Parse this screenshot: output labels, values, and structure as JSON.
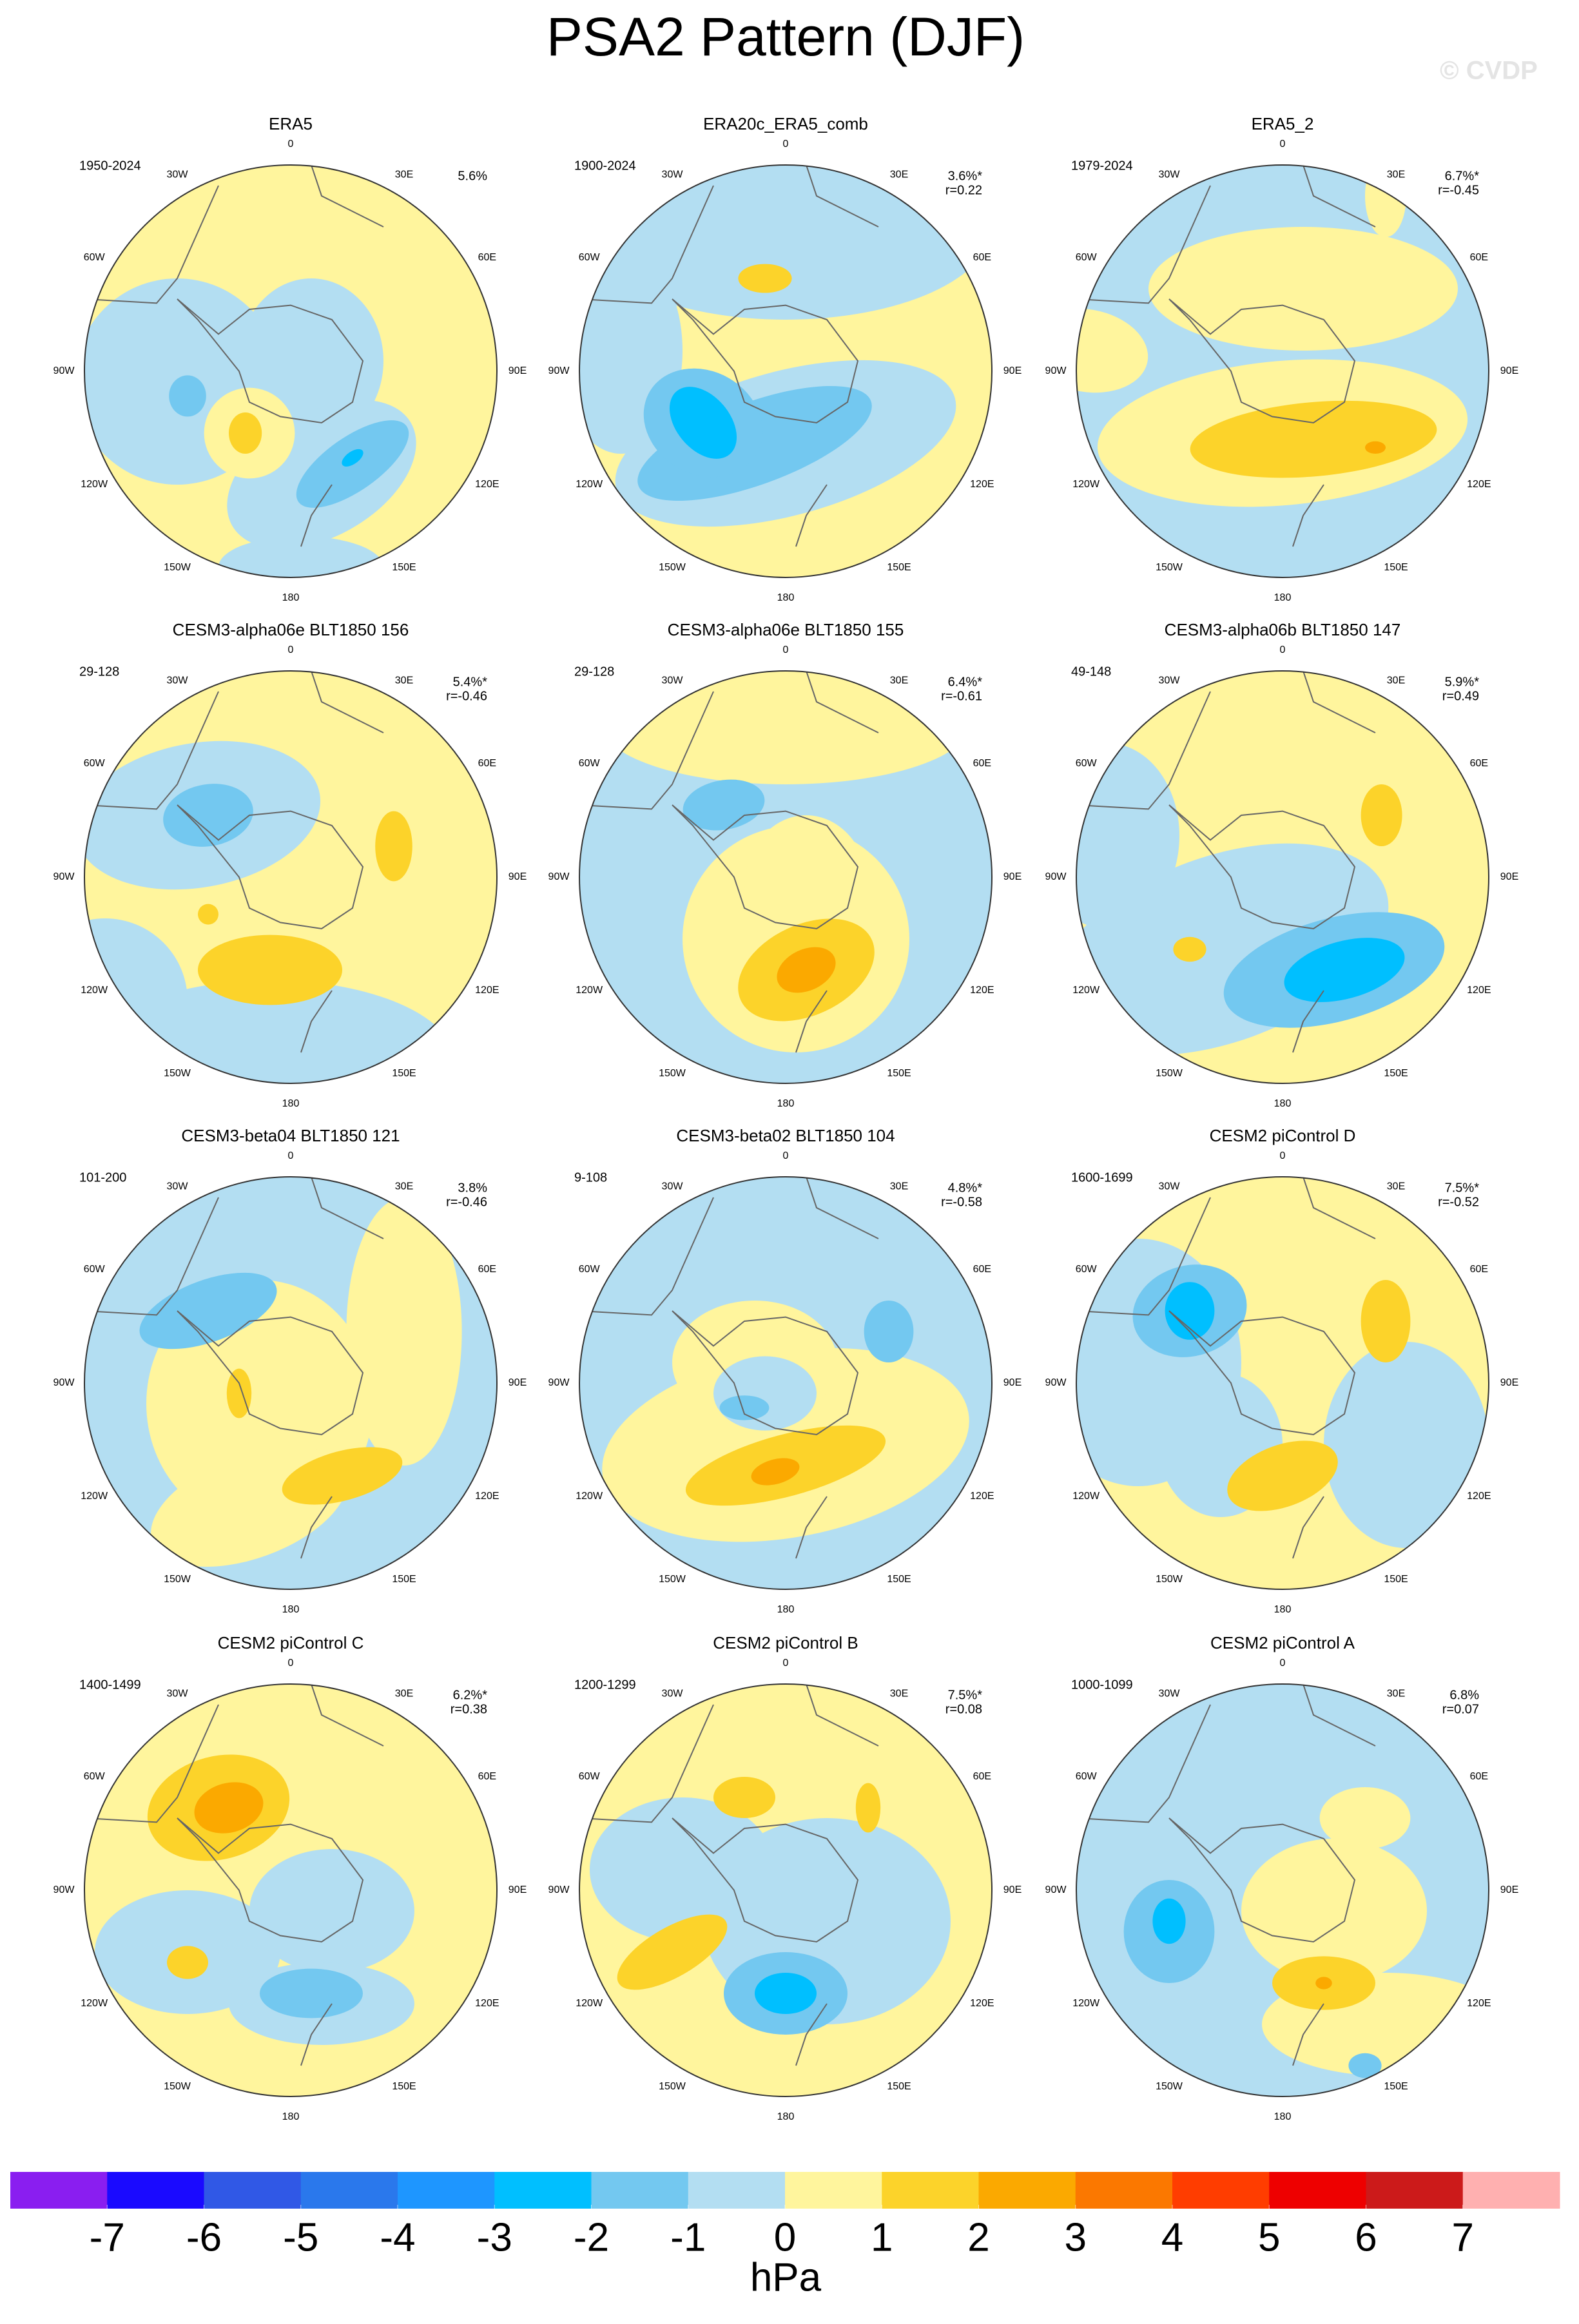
{
  "title": "PSA2 Pattern (DJF)",
  "watermark": "© CVDP",
  "lon_labels": [
    "0",
    "30E",
    "60E",
    "90E",
    "120E",
    "150E",
    "180",
    "150W",
    "120W",
    "90W",
    "60W",
    "30W"
  ],
  "panels": [
    {
      "title": "ERA5",
      "period": "1950-2024",
      "pct": "5.6%"
    },
    {
      "title": "ERA20c_ERA5_comb",
      "period": "1900-2024",
      "pct": "3.6%*",
      "r": "r=0.22"
    },
    {
      "title": "ERA5_2",
      "period": "1979-2024",
      "pct": "6.7%*",
      "r": "r=-0.45"
    },
    {
      "title": "CESM3-alpha06e BLT1850 156",
      "period": "29-128",
      "pct": "5.4%*",
      "r": "r=-0.46"
    },
    {
      "title": "CESM3-alpha06e BLT1850 155",
      "period": "29-128",
      "pct": "6.4%*",
      "r": "r=-0.61"
    },
    {
      "title": "CESM3-alpha06b BLT1850 147",
      "period": "49-148",
      "pct": "5.9%*",
      "r": "r=0.49"
    },
    {
      "title": "CESM3-beta04 BLT1850 121",
      "period": "101-200",
      "pct": "3.8%",
      "r": "r=-0.46"
    },
    {
      "title": "CESM3-beta02 BLT1850 104",
      "period": "9-108",
      "pct": "4.8%*",
      "r": "r=-0.58"
    },
    {
      "title": "CESM2 piControl D",
      "period": "1600-1699",
      "pct": "7.5%*",
      "r": "r=-0.52"
    },
    {
      "title": "CESM2 piControl C",
      "period": "1400-1499",
      "pct": "6.2%*",
      "r": "r=0.38"
    },
    {
      "title": "CESM2 piControl B",
      "period": "1200-1299",
      "pct": "7.5%*",
      "r": "r=0.08"
    },
    {
      "title": "CESM2 piControl A",
      "period": "1000-1099",
      "pct": "6.8%",
      "r": "r=0.07"
    }
  ],
  "colorbar": {
    "colors": [
      "#8a1ef0",
      "#1a0aff",
      "#3058e6",
      "#2a78ec",
      "#1e96ff",
      "#00bfff",
      "#73c8f0",
      "#b3def2",
      "#fff59d",
      "#fcd32a",
      "#fba900",
      "#fb7800",
      "#ff3d00",
      "#ee0000",
      "#cc1a1a",
      "#ffb0b0"
    ],
    "labels": [
      -7,
      -6,
      -5,
      -4,
      -3,
      -2,
      -1,
      0,
      1,
      2,
      3,
      4,
      5,
      6,
      7
    ],
    "unit": "hPa"
  }
}
